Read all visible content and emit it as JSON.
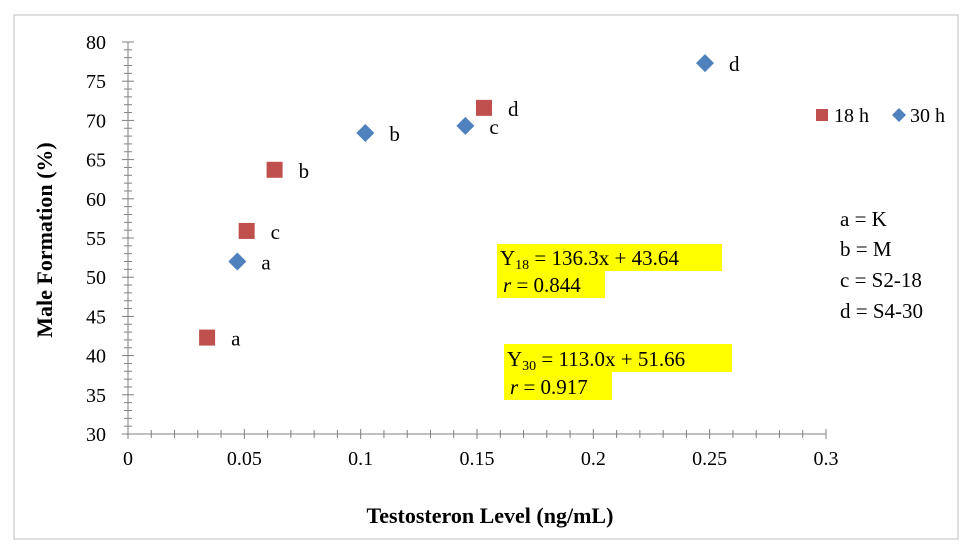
{
  "chart_data": {
    "type": "scatter",
    "xlabel": "Testosteron Level (ng/mL)",
    "ylabel": "Male Formation (%)",
    "xlim": [
      0,
      0.3
    ],
    "ylim": [
      30,
      80
    ],
    "x_ticks": [
      "0",
      "0.05",
      "0.1",
      "0.15",
      "0.2",
      "0.25",
      "0.3"
    ],
    "y_ticks": [
      "30",
      "35",
      "40",
      "45",
      "50",
      "55",
      "60",
      "65",
      "70",
      "75",
      "80"
    ],
    "x_tick_values": [
      0,
      0.05,
      0.1,
      0.15,
      0.2,
      0.25,
      0.3
    ],
    "y_tick_values": [
      30,
      35,
      40,
      45,
      50,
      55,
      60,
      65,
      70,
      75,
      80
    ],
    "legend_position": "right",
    "series": [
      {
        "name": "18 h",
        "marker": "square",
        "color": "#c0504d",
        "points": [
          {
            "x": 0.034,
            "y": 42.3,
            "label": "a"
          },
          {
            "x": 0.063,
            "y": 63.7,
            "label": "b"
          },
          {
            "x": 0.051,
            "y": 55.9,
            "label": "c"
          },
          {
            "x": 0.153,
            "y": 71.6,
            "label": "d"
          }
        ]
      },
      {
        "name": "30 h",
        "marker": "diamond",
        "color": "#4f81bd",
        "points": [
          {
            "x": 0.047,
            "y": 52.0,
            "label": "a"
          },
          {
            "x": 0.102,
            "y": 68.4,
            "label": "b"
          },
          {
            "x": 0.145,
            "y": 69.3,
            "label": "c"
          },
          {
            "x": 0.248,
            "y": 77.3,
            "label": "d"
          }
        ]
      }
    ],
    "key_lines": [
      "a = K",
      "b = M",
      "c = S2-18",
      "d = S4-30"
    ],
    "equations": [
      {
        "prefix": "Y",
        "subscript": "18",
        "equation": " = 136.3x + 43.64",
        "r_symbol": "r",
        "r_value": " = 0.844"
      },
      {
        "prefix": "Y",
        "subscript": "30",
        "equation": " = 113.0x + 51.66",
        "r_symbol": "r",
        "r_value": " = 0.917"
      }
    ],
    "highlight_color": "#ffff00"
  }
}
